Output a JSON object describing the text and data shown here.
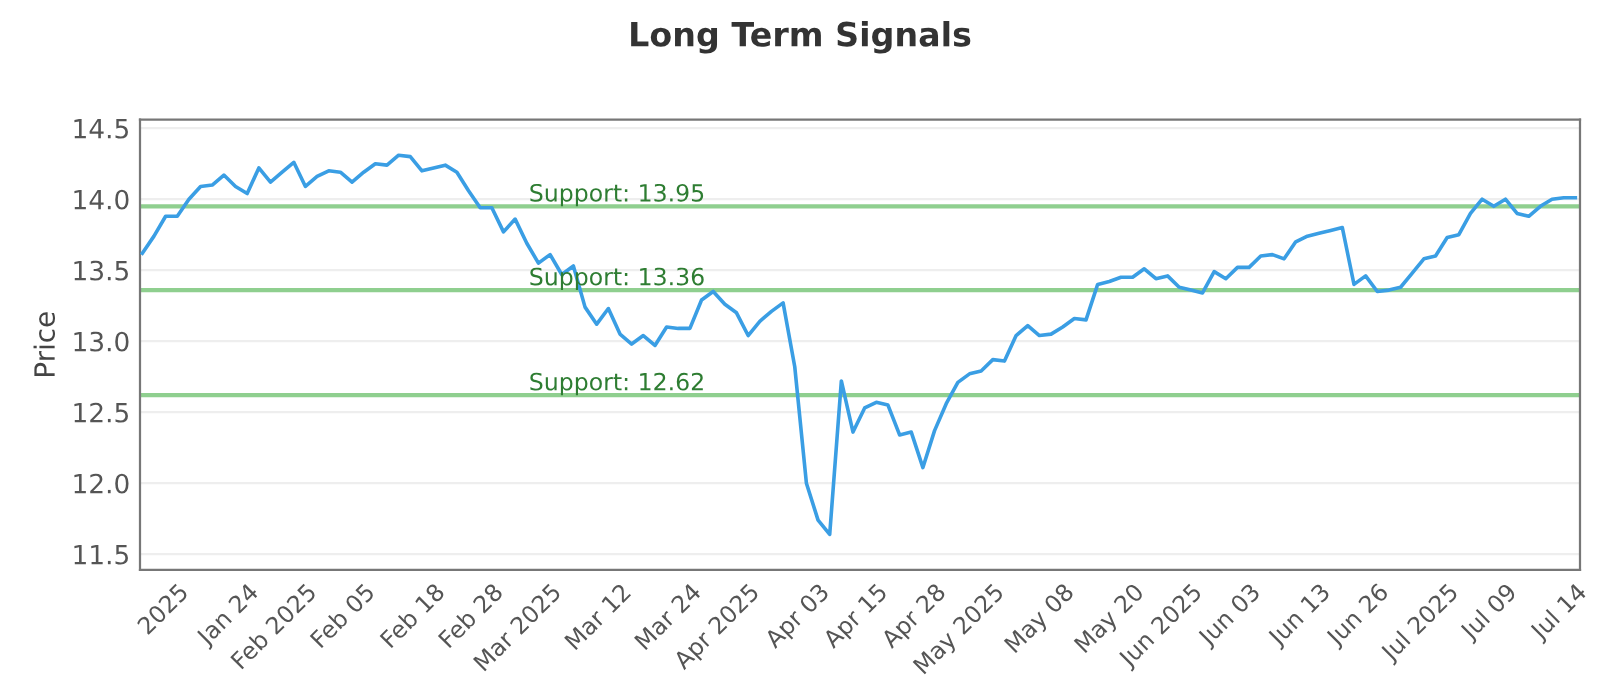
{
  "chart_data": {
    "type": "line",
    "title": "Long Term Signals",
    "ylabel": "Price",
    "categories": [
      null,
      null,
      null,
      "2025",
      null,
      null,
      null,
      null,
      null,
      "Jan 24",
      null,
      null,
      null,
      null,
      "Feb 2025",
      null,
      null,
      null,
      null,
      "Feb 05",
      null,
      null,
      null,
      null,
      null,
      "Feb 18",
      null,
      null,
      null,
      null,
      "Feb 28",
      null,
      null,
      null,
      null,
      "Mar 2025",
      null,
      null,
      null,
      null,
      null,
      "Mar 12",
      null,
      null,
      null,
      null,
      null,
      "Mar 24",
      null,
      null,
      null,
      null,
      "Apr 2025",
      null,
      null,
      null,
      null,
      null,
      "Apr 03",
      null,
      null,
      null,
      null,
      "Apr 15",
      null,
      null,
      null,
      null,
      "Apr 28",
      null,
      null,
      null,
      null,
      "May 2025",
      null,
      null,
      null,
      null,
      null,
      "May 08",
      null,
      null,
      null,
      null,
      null,
      "May 20",
      null,
      null,
      null,
      null,
      "Jun 2025",
      null,
      null,
      null,
      null,
      "Jun 03",
      null,
      null,
      null,
      null,
      null,
      "Jun 13",
      null,
      null,
      null,
      null,
      "Jun 26",
      null,
      null,
      null,
      null,
      null,
      "Jul 2025",
      null,
      null,
      null,
      null,
      "Jul 09",
      null,
      null,
      null,
      null,
      null,
      "Jul 14"
    ],
    "series": [
      {
        "color": "#3a9ee4",
        "values": [
          13.62,
          13.74,
          13.88,
          13.88,
          14.0,
          14.09,
          14.1,
          14.17,
          14.09,
          14.04,
          14.22,
          14.12,
          14.19,
          14.26,
          14.09,
          14.16,
          14.2,
          14.19,
          14.12,
          14.19,
          14.25,
          14.24,
          14.31,
          14.3,
          14.2,
          14.22,
          14.24,
          14.19,
          14.06,
          13.94,
          13.94,
          13.77,
          13.86,
          13.69,
          13.55,
          13.61,
          13.47,
          13.53,
          13.24,
          13.12,
          13.23,
          13.05,
          12.98,
          13.04,
          12.97,
          13.1,
          13.09,
          13.09,
          13.29,
          13.35,
          13.26,
          13.2,
          13.04,
          13.14,
          13.21,
          13.27,
          12.82,
          12.0,
          11.74,
          11.64,
          12.72,
          12.36,
          12.53,
          12.57,
          12.55,
          12.34,
          12.36,
          12.11,
          12.37,
          12.56,
          12.71,
          12.77,
          12.79,
          12.87,
          12.86,
          13.04,
          13.11,
          13.04,
          13.05,
          13.1,
          13.16,
          13.15,
          13.4,
          13.42,
          13.45,
          13.45,
          13.51,
          13.44,
          13.46,
          13.38,
          13.36,
          13.34,
          13.49,
          13.44,
          13.52,
          13.52,
          13.6,
          13.61,
          13.58,
          13.7,
          13.74,
          13.76,
          13.78,
          13.8,
          13.4,
          13.46,
          13.35,
          13.36,
          13.38,
          13.48,
          13.58,
          13.6,
          13.73,
          13.75,
          13.9,
          14.0,
          13.95,
          14.0,
          13.9,
          13.88,
          13.95,
          14.0,
          14.01,
          14.01
        ]
      }
    ],
    "ylim": [
      11.39,
      14.56
    ],
    "yticks": [
      {
        "value": 11.5,
        "label": "11.5"
      },
      {
        "value": 12.0,
        "label": "12.0"
      },
      {
        "value": 12.5,
        "label": "12.5"
      },
      {
        "value": 13.0,
        "label": "13.0"
      },
      {
        "value": 13.5,
        "label": "13.5"
      },
      {
        "value": 14.0,
        "label": "14.0"
      },
      {
        "value": 14.5,
        "label": "14.5"
      }
    ],
    "grid": "y",
    "marker": "none",
    "line_style": "solid",
    "legend": false,
    "ref_lines": [
      {
        "axis": "y",
        "value": 13.95,
        "label": "Support: 13.95",
        "color": "#8fcf8f"
      },
      {
        "axis": "y",
        "value": 13.36,
        "label": "Support: 13.36",
        "color": "#8fcf8f"
      },
      {
        "axis": "y",
        "value": 12.62,
        "label": "Support: 12.62",
        "color": "#8fcf8f"
      }
    ]
  }
}
